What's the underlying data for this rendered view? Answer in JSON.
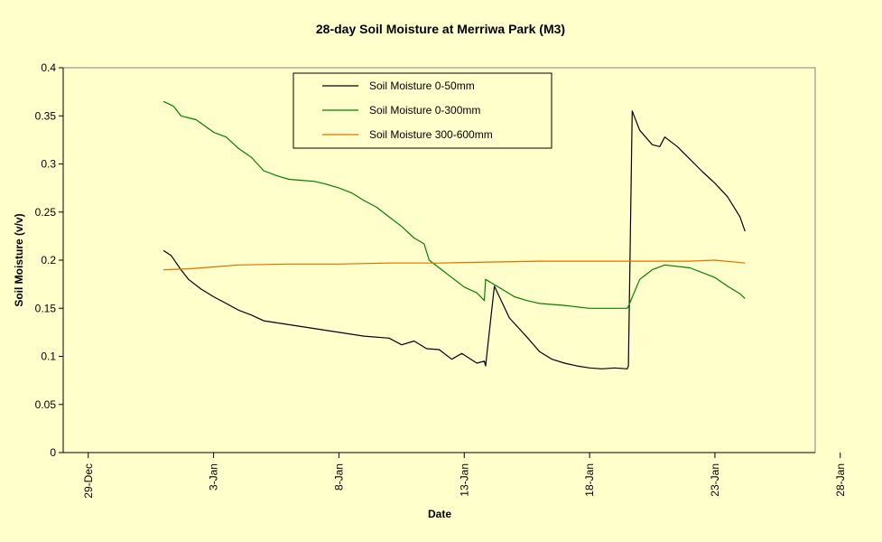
{
  "chart_data": {
    "type": "line",
    "title": "28-day Soil Moisture at Merriwa Park (M3)",
    "xlabel": "Date",
    "ylabel": "Soil Moisture (v/v)",
    "x_ticks": [
      "29-Dec",
      "3-Jan",
      "8-Jan",
      "13-Jan",
      "18-Jan",
      "23-Jan",
      "28-Jan"
    ],
    "x_range": [
      "29-Dec",
      "28-Jan"
    ],
    "y_ticks": [
      "0",
      "0.05",
      "0.1",
      "0.15",
      "0.2",
      "0.25",
      "0.3",
      "0.35",
      "0.4"
    ],
    "ylim": [
      0,
      0.4
    ],
    "grid": false,
    "legend_position": "top-center",
    "plot_background": "#FFFFCC",
    "series": [
      {
        "name": "Soil Moisture 0-50mm",
        "color": "#000000",
        "x": [
          "Jan 1",
          "Jan 1.3",
          "Jan 1.7",
          "Jan 2",
          "Jan 2.5",
          "Jan 3",
          "Jan 3.5",
          "Jan 4",
          "Jan 4.5",
          "Jan 5",
          "Jan 6",
          "Jan 7",
          "Jan 8",
          "Jan 9",
          "Jan 10",
          "Jan 10.5",
          "Jan 11",
          "Jan 11.5",
          "Jan 12",
          "Jan 12.5",
          "Jan 12.9",
          "Jan 13.5",
          "Jan 13.8",
          "Jan 13.85",
          "Jan 14.2",
          "Jan 14.8",
          "Jan 15.5",
          "Jan 16",
          "Jan 16.5",
          "Jan 17",
          "Jan 17.5",
          "Jan 18",
          "Jan 18.5",
          "Jan 19",
          "Jan 19.5",
          "Jan 19.55",
          "Jan 19.7",
          "Jan 20",
          "Jan 20.5",
          "Jan 20.8",
          "Jan 21",
          "Jan 21.5",
          "Jan 22",
          "Jan 22.5",
          "Jan 23",
          "Jan 23.5",
          "Jan 24",
          "Jan 24.2"
        ],
        "values": [
          0.21,
          0.205,
          0.19,
          0.18,
          0.17,
          0.162,
          0.155,
          0.148,
          0.143,
          0.137,
          0.133,
          0.129,
          0.125,
          0.121,
          0.119,
          0.112,
          0.116,
          0.108,
          0.107,
          0.097,
          0.103,
          0.093,
          0.095,
          0.09,
          0.173,
          0.14,
          0.12,
          0.105,
          0.097,
          0.093,
          0.09,
          0.088,
          0.087,
          0.088,
          0.087,
          0.09,
          0.355,
          0.335,
          0.32,
          0.318,
          0.328,
          0.318,
          0.305,
          0.292,
          0.28,
          0.266,
          0.245,
          0.23
        ]
      },
      {
        "name": "Soil Moisture 0-300mm",
        "color": "#008000",
        "x": [
          "Jan 1",
          "Jan 1.4",
          "Jan 1.7",
          "Jan 2.3",
          "Jan 3",
          "Jan 3.5",
          "Jan 4",
          "Jan 4.5",
          "Jan 5",
          "Jan 5.5",
          "Jan 6",
          "Jan 6.5",
          "Jan 7",
          "Jan 7.5",
          "Jan 8",
          "Jan 8.5",
          "Jan 9",
          "Jan 9.5",
          "Jan 10",
          "Jan 10.5",
          "Jan 11",
          "Jan 11.4",
          "Jan 11.6",
          "Jan 12",
          "Jan 12.5",
          "Jan 13",
          "Jan 13.5",
          "Jan 13.8",
          "Jan 13.85",
          "Jan 14.5",
          "Jan 15",
          "Jan 15.5",
          "Jan 16",
          "Jan 17",
          "Jan 18",
          "Jan 19",
          "Jan 19.5",
          "Jan 19.55",
          "Jan 20",
          "Jan 20.5",
          "Jan 21",
          "Jan 22",
          "Jan 23",
          "Jan 23.5",
          "Jan 24",
          "Jan 24.2"
        ],
        "values": [
          0.365,
          0.36,
          0.35,
          0.346,
          0.333,
          0.328,
          0.316,
          0.307,
          0.293,
          0.288,
          0.284,
          0.283,
          0.282,
          0.279,
          0.275,
          0.27,
          0.262,
          0.255,
          0.245,
          0.235,
          0.223,
          0.217,
          0.2,
          0.192,
          0.182,
          0.172,
          0.166,
          0.158,
          0.18,
          0.17,
          0.162,
          0.158,
          0.155,
          0.153,
          0.15,
          0.15,
          0.15,
          0.152,
          0.18,
          0.19,
          0.195,
          0.192,
          0.182,
          0.173,
          0.165,
          0.16
        ]
      },
      {
        "name": "Soil Moisture 300-600mm",
        "color": "#E07000",
        "x": [
          "Jan 1",
          "Jan 2",
          "Jan 3",
          "Jan 4",
          "Jan 6",
          "Jan 8",
          "Jan 10",
          "Jan 12",
          "Jan 14",
          "Jan 16",
          "Jan 18",
          "Jan 20",
          "Jan 22",
          "Jan 23",
          "Jan 24.2"
        ],
        "values": [
          0.19,
          0.191,
          0.193,
          0.195,
          0.196,
          0.196,
          0.197,
          0.197,
          0.198,
          0.199,
          0.199,
          0.199,
          0.199,
          0.2,
          0.197
        ]
      }
    ]
  }
}
